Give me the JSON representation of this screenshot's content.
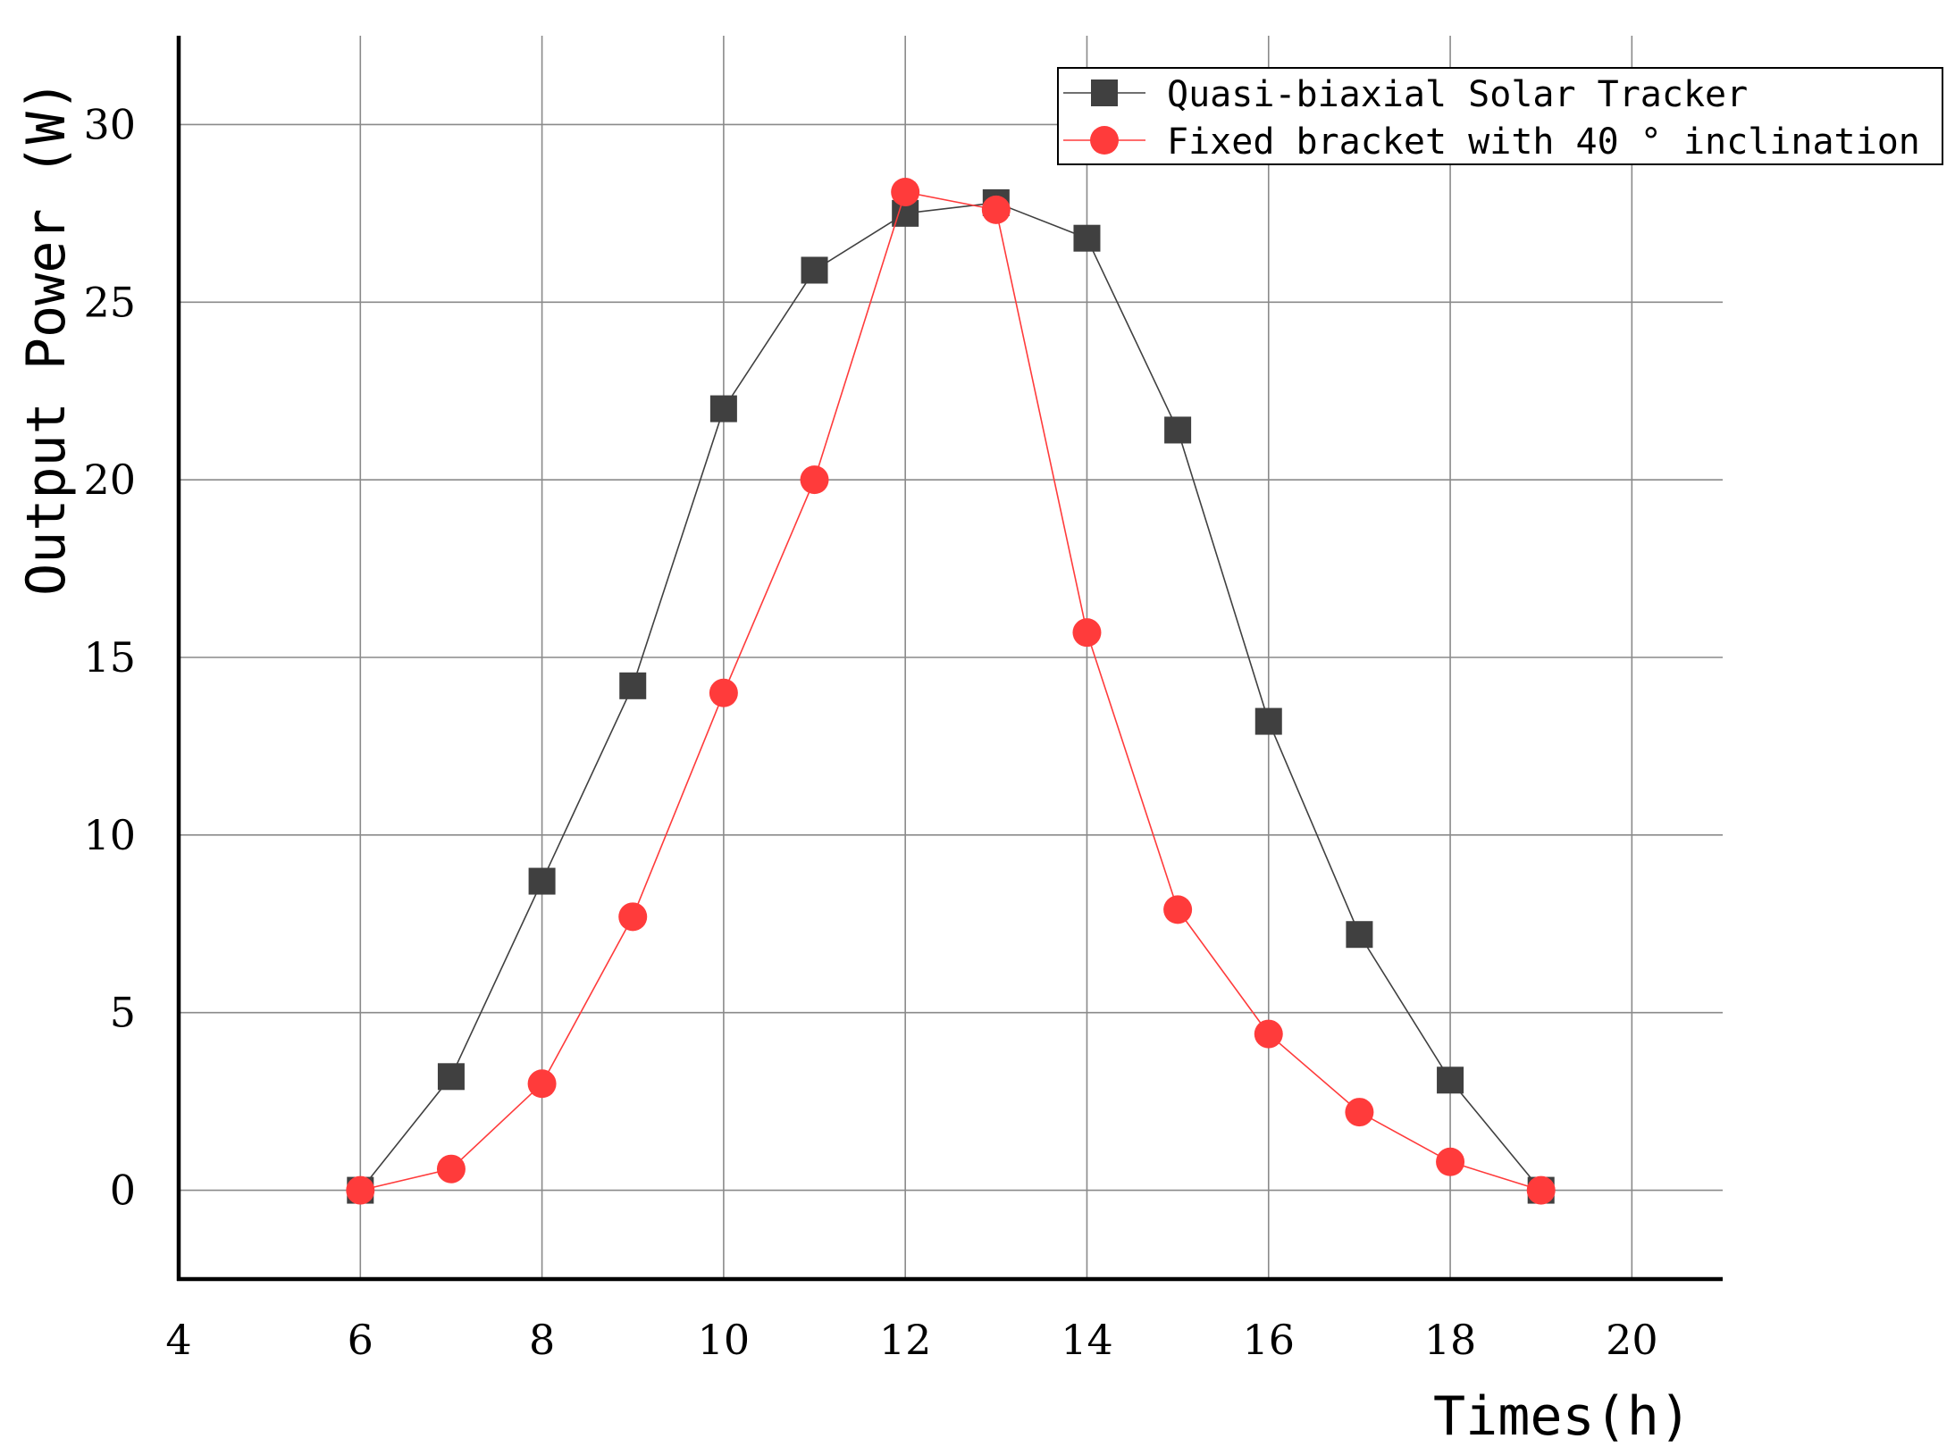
{
  "chart_data": {
    "type": "line",
    "xlabel": "Times(h)",
    "ylabel": "Output Power (W)",
    "xlim": [
      4,
      21
    ],
    "ylim": [
      -2.5,
      32.5
    ],
    "xticks": [
      "4",
      "6",
      "8",
      "10",
      "12",
      "14",
      "16",
      "18",
      "20"
    ],
    "yticks": [
      "0",
      "5",
      "10",
      "15",
      "20",
      "25",
      "30"
    ],
    "grid": true,
    "legend_position": "top-right",
    "series": [
      {
        "name": "Quasi-biaxial Solar Tracker",
        "color": "#404040",
        "marker": "square",
        "x": [
          6,
          7,
          8,
          9,
          10,
          11,
          12,
          13,
          14,
          15,
          16,
          17,
          18,
          19
        ],
        "y": [
          0,
          3.2,
          8.7,
          14.2,
          22.0,
          25.9,
          27.5,
          27.8,
          26.8,
          21.4,
          13.2,
          7.2,
          3.1,
          0
        ]
      },
      {
        "name": "Fixed bracket with 40 °  inclination",
        "color": "#ff3b3b",
        "marker": "circle",
        "x": [
          6,
          7,
          8,
          9,
          10,
          11,
          12,
          13,
          14,
          15,
          16,
          17,
          18,
          19
        ],
        "y": [
          0,
          0.6,
          3.0,
          7.7,
          14.0,
          20.0,
          28.1,
          27.6,
          15.7,
          7.9,
          4.4,
          2.2,
          0.8,
          0
        ]
      }
    ]
  }
}
